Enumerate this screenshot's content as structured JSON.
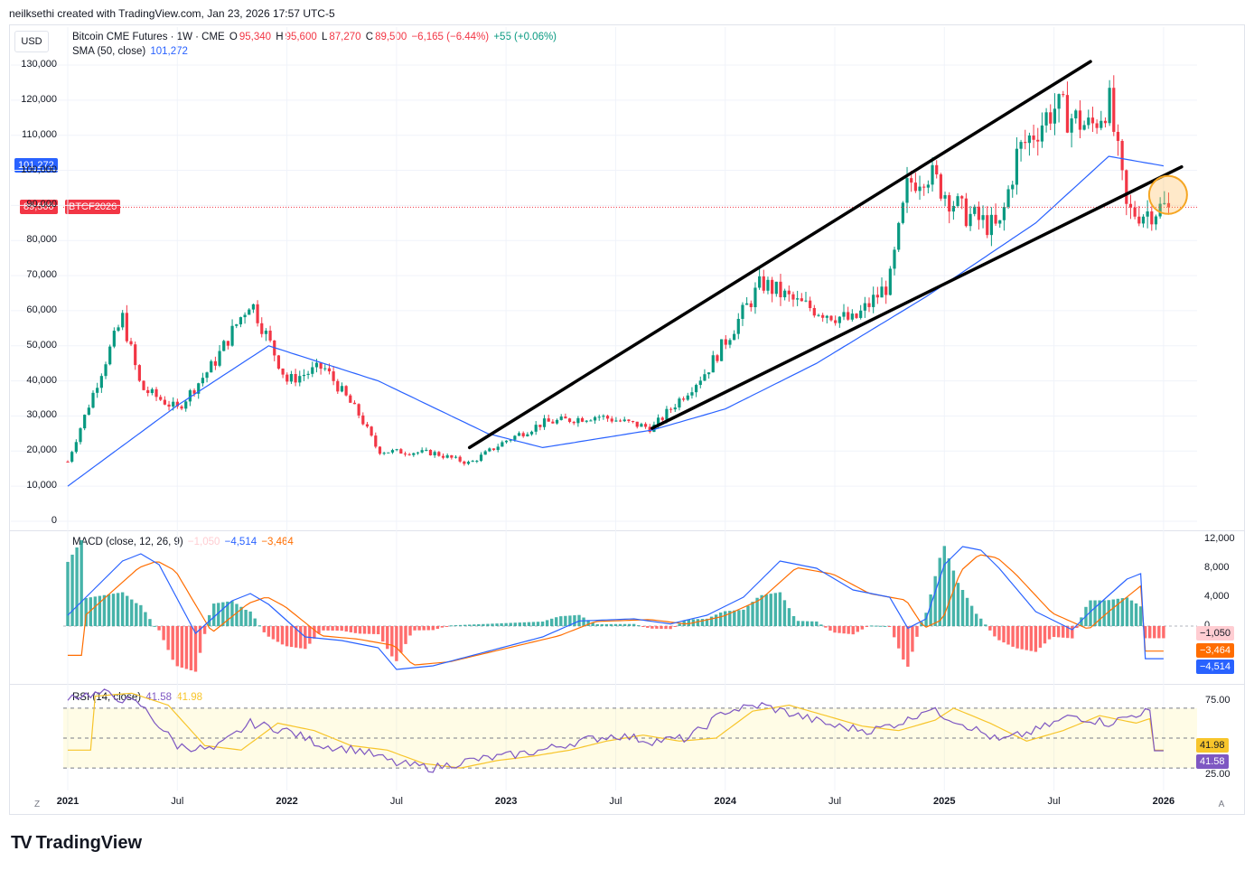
{
  "header": {
    "credit": "neilksethi created with TradingView.com, Jan 23, 2026 17:57 UTC-5"
  },
  "currency": "USD",
  "main_legend": {
    "symbol": "Bitcoin CME Futures · 1W · CME",
    "open_label": "O",
    "open": "95,340",
    "high_label": "H",
    "high": "95,600",
    "low_label": "L",
    "low": "87,270",
    "close_label": "C",
    "close": "89,500",
    "change": "−6,165 (−6.44%)",
    "extra": "+55 (+0.06%)"
  },
  "sma_legend": {
    "label": "SMA (50, close)",
    "value": "101,272"
  },
  "price_tags": {
    "sma": "101,272",
    "last": "89,500",
    "symbol_tag": "BTCF2026"
  },
  "macd_legend": {
    "label": "MACD (close, 12, 26, 9)",
    "hist": "−1,050",
    "macd": "−4,514",
    "signal": "−3,464"
  },
  "rsi_legend": {
    "label": "RSI (14, close)",
    "rsi": "41.58",
    "ma": "41.98"
  },
  "price_axis": [
    "130,000",
    "120,000",
    "110,000",
    "100,000",
    "90,000",
    "80,000",
    "70,000",
    "60,000",
    "50,000",
    "40,000",
    "30,000",
    "20,000",
    "10,000",
    "0"
  ],
  "macd_axis": [
    "12,000",
    "8,000",
    "4,000",
    "0"
  ],
  "rsi_axis": [
    "75.00",
    "25.00"
  ],
  "macd_tags": {
    "hist": "−1,050",
    "signal": "−3,464",
    "macd": "−4,514"
  },
  "rsi_tags": {
    "ma": "41.98",
    "rsi": "41.58"
  },
  "x_axis": [
    {
      "label": "2021",
      "bold": true
    },
    {
      "label": "Jul",
      "bold": false
    },
    {
      "label": "2022",
      "bold": true
    },
    {
      "label": "Jul",
      "bold": false
    },
    {
      "label": "2023",
      "bold": true
    },
    {
      "label": "Jul",
      "bold": false
    },
    {
      "label": "2024",
      "bold": true
    },
    {
      "label": "Jul",
      "bold": false
    },
    {
      "label": "2025",
      "bold": true
    },
    {
      "label": "Jul",
      "bold": false
    },
    {
      "label": "2026",
      "bold": true
    }
  ],
  "footer": {
    "brand": "TradingView",
    "logo": "TV"
  },
  "buttons": {
    "zoom": "Z",
    "auto": "A"
  },
  "colors": {
    "up": "#089981",
    "down": "#f23645",
    "sma": "#2962ff",
    "macd": "#2962ff",
    "signal": "#ff6d00",
    "rsi": "#7e57c2",
    "rsi_ma": "#f7c52b"
  },
  "chart_data": {
    "type": "candlestick",
    "title": "Bitcoin CME Futures · 1W · CME",
    "x_start": "2021-01",
    "x_end": "2026-01",
    "price_range": [
      0,
      130000
    ],
    "price_path": [
      [
        "2021-01",
        17000
      ],
      [
        "2021-03",
        45000
      ],
      [
        "2021-04",
        58000
      ],
      [
        "2021-05",
        38000
      ],
      [
        "2021-07",
        32000
      ],
      [
        "2021-09",
        45000
      ],
      [
        "2021-11",
        63000
      ],
      [
        "2022-01",
        40000
      ],
      [
        "2022-03",
        44000
      ],
      [
        "2022-05",
        30000
      ],
      [
        "2022-06",
        20000
      ],
      [
        "2022-09",
        19500
      ],
      [
        "2022-11",
        16500
      ],
      [
        "2023-01",
        23000
      ],
      [
        "2023-03",
        28000
      ],
      [
        "2023-06",
        30000
      ],
      [
        "2023-09",
        26500
      ],
      [
        "2023-12",
        43000
      ],
      [
        "2024-03",
        68000
      ],
      [
        "2024-05",
        62000
      ],
      [
        "2024-08",
        57000
      ],
      [
        "2024-10",
        68000
      ],
      [
        "2024-11",
        96000
      ],
      [
        "2024-12",
        100000
      ],
      [
        "2025-02",
        88000
      ],
      [
        "2025-04",
        83000
      ],
      [
        "2025-05",
        105000
      ],
      [
        "2025-07",
        118000
      ],
      [
        "2025-09",
        112000
      ],
      [
        "2025-10",
        120000
      ],
      [
        "2025-11",
        88000
      ],
      [
        "2025-12",
        88000
      ],
      [
        "2026-01",
        89500
      ]
    ],
    "sma50_path": [
      [
        "2021-01",
        10000
      ],
      [
        "2021-07",
        33000
      ],
      [
        "2021-12",
        50000
      ],
      [
        "2022-06",
        40000
      ],
      [
        "2022-12",
        25000
      ],
      [
        "2023-03",
        21000
      ],
      [
        "2023-09",
        26000
      ],
      [
        "2024-01",
        32000
      ],
      [
        "2024-06",
        45000
      ],
      [
        "2024-12",
        64000
      ],
      [
        "2025-06",
        85000
      ],
      [
        "2025-10",
        104000
      ],
      [
        "2026-01",
        101272
      ]
    ],
    "annotations": {
      "upper_channel": [
        [
          "2022-11",
          21000
        ],
        [
          "2025-09",
          131000
        ]
      ],
      "lower_channel": [
        [
          "2023-09",
          26500
        ],
        [
          "2026-01",
          100000
        ]
      ],
      "highlight_circle": [
        "2026-01",
        93000
      ]
    },
    "last_close": 89500,
    "sma_last": 101272,
    "macd": {
      "range": [
        -12000,
        12000
      ],
      "last_macd": -4514,
      "last_signal": -3464,
      "last_hist": -1050
    },
    "rsi": {
      "range": [
        0,
        100
      ],
      "bands": [
        30,
        50,
        70
      ],
      "last": 41.58,
      "last_ma": 41.98
    }
  }
}
